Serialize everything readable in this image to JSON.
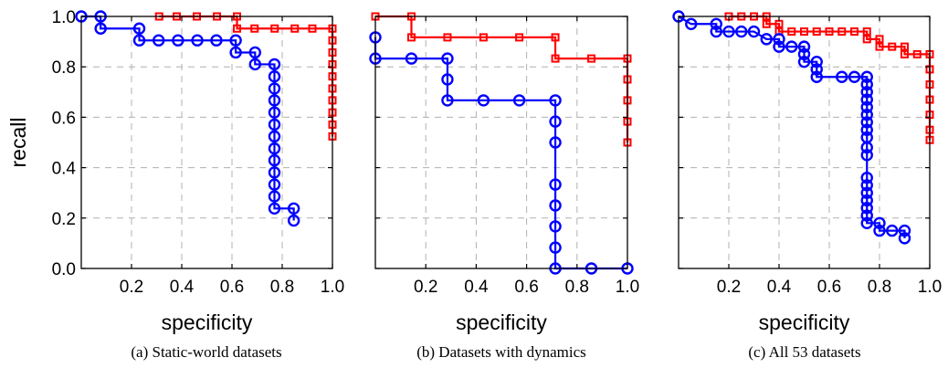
{
  "chart_data": [
    {
      "type": "line",
      "caption": "(a) Static-world datasets",
      "xlabel": "specificity",
      "ylabel": "recall",
      "xlim": [
        0.0,
        1.0
      ],
      "ylim": [
        0.0,
        1.0
      ],
      "x_ticks": [
        "0.2",
        "0.4",
        "0.6",
        "0.8",
        "1.0"
      ],
      "y_ticks": [
        "0.0",
        "0.2",
        "0.4",
        "0.6",
        "0.8",
        "1.0"
      ],
      "show_y_tick_labels": true,
      "grid": true,
      "series": [
        {
          "color": "#ff0000",
          "marker": "square",
          "points": [
            [
              0.31,
              1.0
            ],
            [
              0.38,
              1.0
            ],
            [
              0.46,
              1.0
            ],
            [
              0.54,
              1.0
            ],
            [
              0.62,
              1.0
            ],
            [
              0.62,
              0.952
            ],
            [
              0.69,
              0.952
            ],
            [
              0.77,
              0.952
            ],
            [
              0.85,
              0.952
            ],
            [
              0.92,
              0.952
            ],
            [
              1.0,
              0.952
            ],
            [
              1.0,
              0.905
            ],
            [
              1.0,
              0.857
            ],
            [
              1.0,
              0.81
            ],
            [
              1.0,
              0.762
            ],
            [
              1.0,
              0.714
            ],
            [
              1.0,
              0.667
            ],
            [
              1.0,
              0.619
            ],
            [
              1.0,
              0.571
            ],
            [
              1.0,
              0.524
            ]
          ]
        },
        {
          "color": "#0000ff",
          "marker": "circle",
          "points": [
            [
              0.0,
              1.0
            ],
            [
              0.077,
              1.0
            ],
            [
              0.077,
              0.952
            ],
            [
              0.231,
              0.952
            ],
            [
              0.231,
              0.905
            ],
            [
              0.308,
              0.905
            ],
            [
              0.385,
              0.905
            ],
            [
              0.462,
              0.905
            ],
            [
              0.538,
              0.905
            ],
            [
              0.615,
              0.905
            ],
            [
              0.615,
              0.857
            ],
            [
              0.692,
              0.857
            ],
            [
              0.692,
              0.81
            ],
            [
              0.769,
              0.81
            ],
            [
              0.769,
              0.762
            ],
            [
              0.769,
              0.714
            ],
            [
              0.769,
              0.667
            ],
            [
              0.769,
              0.619
            ],
            [
              0.769,
              0.571
            ],
            [
              0.769,
              0.524
            ],
            [
              0.769,
              0.476
            ],
            [
              0.769,
              0.429
            ],
            [
              0.769,
              0.381
            ],
            [
              0.769,
              0.333
            ],
            [
              0.769,
              0.286
            ],
            [
              0.769,
              0.238
            ],
            [
              0.846,
              0.238
            ],
            [
              0.846,
              0.19
            ]
          ]
        }
      ]
    },
    {
      "type": "line",
      "caption": "(b) Datasets with dynamics",
      "xlabel": "specificity",
      "ylabel": "",
      "xlim": [
        0.0,
        1.0
      ],
      "ylim": [
        0.0,
        1.0
      ],
      "x_ticks": [
        "0.2",
        "0.4",
        "0.6",
        "0.8",
        "1.0"
      ],
      "y_ticks": [
        "0.0",
        "0.2",
        "0.4",
        "0.6",
        "0.8",
        "1.0"
      ],
      "show_y_tick_labels": false,
      "grid": true,
      "series": [
        {
          "color": "#ff0000",
          "marker": "square",
          "points": [
            [
              0.0,
              1.0
            ],
            [
              0.143,
              1.0
            ],
            [
              0.143,
              0.917
            ],
            [
              0.286,
              0.917
            ],
            [
              0.429,
              0.917
            ],
            [
              0.571,
              0.917
            ],
            [
              0.714,
              0.917
            ],
            [
              0.714,
              0.833
            ],
            [
              0.857,
              0.833
            ],
            [
              1.0,
              0.833
            ],
            [
              1.0,
              0.75
            ],
            [
              1.0,
              0.667
            ],
            [
              1.0,
              0.583
            ],
            [
              1.0,
              0.5
            ]
          ]
        },
        {
          "color": "#0000ff",
          "marker": "circle",
          "points": [
            [
              0.0,
              0.917
            ],
            [
              0.0,
              0.833
            ],
            [
              0.143,
              0.833
            ],
            [
              0.286,
              0.833
            ],
            [
              0.286,
              0.75
            ],
            [
              0.286,
              0.667
            ],
            [
              0.429,
              0.667
            ],
            [
              0.571,
              0.667
            ],
            [
              0.714,
              0.667
            ],
            [
              0.714,
              0.583
            ],
            [
              0.714,
              0.5
            ],
            [
              0.714,
              0.333
            ],
            [
              0.714,
              0.25
            ],
            [
              0.714,
              0.167
            ],
            [
              0.714,
              0.083
            ],
            [
              0.714,
              0.0
            ],
            [
              0.857,
              0.0
            ],
            [
              1.0,
              0.0
            ]
          ]
        }
      ]
    },
    {
      "type": "line",
      "caption": "(c) All 53 datasets",
      "xlabel": "specificity",
      "ylabel": "",
      "xlim": [
        0.0,
        1.0
      ],
      "ylim": [
        0.0,
        1.0
      ],
      "x_ticks": [
        "0.2",
        "0.4",
        "0.6",
        "0.8",
        "1.0"
      ],
      "y_ticks": [
        "0.0",
        "0.2",
        "0.4",
        "0.6",
        "0.8",
        "1.0"
      ],
      "show_y_tick_labels": false,
      "grid": true,
      "series": [
        {
          "color": "#ff0000",
          "marker": "square",
          "points": [
            [
              0.2,
              1.0
            ],
            [
              0.25,
              1.0
            ],
            [
              0.3,
              1.0
            ],
            [
              0.35,
              1.0
            ],
            [
              0.35,
              0.97
            ],
            [
              0.4,
              0.97
            ],
            [
              0.4,
              0.94
            ],
            [
              0.45,
              0.94
            ],
            [
              0.5,
              0.94
            ],
            [
              0.55,
              0.94
            ],
            [
              0.6,
              0.94
            ],
            [
              0.65,
              0.94
            ],
            [
              0.7,
              0.94
            ],
            [
              0.75,
              0.94
            ],
            [
              0.75,
              0.91
            ],
            [
              0.8,
              0.91
            ],
            [
              0.8,
              0.88
            ],
            [
              0.85,
              0.88
            ],
            [
              0.9,
              0.88
            ],
            [
              0.9,
              0.85
            ],
            [
              0.95,
              0.85
            ],
            [
              1.0,
              0.85
            ],
            [
              1.0,
              0.79
            ],
            [
              1.0,
              0.73
            ],
            [
              1.0,
              0.67
            ],
            [
              1.0,
              0.61
            ],
            [
              1.0,
              0.55
            ],
            [
              1.0,
              0.51
            ]
          ]
        },
        {
          "color": "#0000ff",
          "marker": "circle",
          "points": [
            [
              0.0,
              1.0
            ],
            [
              0.05,
              0.97
            ],
            [
              0.15,
              0.97
            ],
            [
              0.15,
              0.94
            ],
            [
              0.2,
              0.94
            ],
            [
              0.25,
              0.94
            ],
            [
              0.3,
              0.94
            ],
            [
              0.35,
              0.91
            ],
            [
              0.4,
              0.91
            ],
            [
              0.4,
              0.88
            ],
            [
              0.45,
              0.88
            ],
            [
              0.5,
              0.88
            ],
            [
              0.5,
              0.85
            ],
            [
              0.5,
              0.82
            ],
            [
              0.55,
              0.82
            ],
            [
              0.55,
              0.79
            ],
            [
              0.55,
              0.76
            ],
            [
              0.65,
              0.76
            ],
            [
              0.7,
              0.76
            ],
            [
              0.75,
              0.76
            ],
            [
              0.75,
              0.73
            ],
            [
              0.75,
              0.7
            ],
            [
              0.75,
              0.67
            ],
            [
              0.75,
              0.64
            ],
            [
              0.75,
              0.61
            ],
            [
              0.75,
              0.58
            ],
            [
              0.75,
              0.55
            ],
            [
              0.75,
              0.52
            ],
            [
              0.75,
              0.48
            ],
            [
              0.75,
              0.45
            ],
            [
              0.75,
              0.36
            ],
            [
              0.75,
              0.33
            ],
            [
              0.75,
              0.3
            ],
            [
              0.75,
              0.27
            ],
            [
              0.75,
              0.24
            ],
            [
              0.75,
              0.21
            ],
            [
              0.75,
              0.18
            ],
            [
              0.8,
              0.18
            ],
            [
              0.8,
              0.15
            ],
            [
              0.85,
              0.15
            ],
            [
              0.9,
              0.15
            ],
            [
              0.9,
              0.12
            ]
          ]
        }
      ]
    }
  ]
}
